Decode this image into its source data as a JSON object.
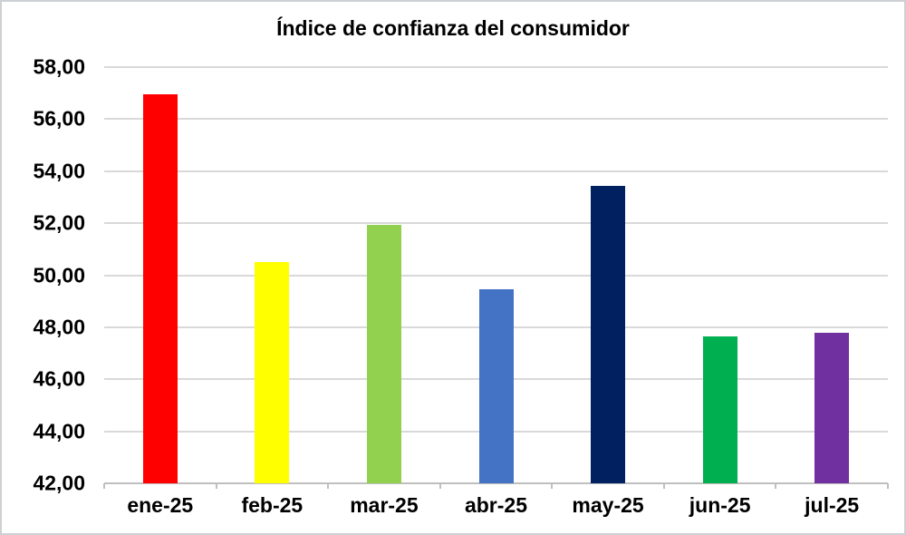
{
  "canvas": {
    "background": "#ffffff",
    "border_color": "#cdd0d4"
  },
  "chart_data": {
    "type": "bar",
    "title": "Índice de confianza del consumidor",
    "categories": [
      "ene-25",
      "feb-25",
      "mar-25",
      "abr-25",
      "may-25",
      "jun-25",
      "jul-25"
    ],
    "values": [
      56.95,
      50.5,
      51.95,
      49.45,
      53.45,
      47.65,
      47.8
    ],
    "bar_colors": [
      "#ff0000",
      "#ffff00",
      "#92d050",
      "#4472c4",
      "#002060",
      "#00b050",
      "#7030a0"
    ],
    "xlabel": "",
    "ylabel": "",
    "ylim": [
      42,
      58
    ],
    "y_axis": {
      "min": 42,
      "max": 58,
      "step": 2,
      "tick_labels": [
        "58,00",
        "56,00",
        "54,00",
        "52,00",
        "50,00",
        "48,00",
        "46,00",
        "44,00",
        "42,00"
      ],
      "decimal_separator": ","
    },
    "grid": true,
    "legend": false,
    "gridline_color": "#d9d9d9",
    "axis_line_color": "#bfbfbf",
    "text_color": "#000000"
  }
}
